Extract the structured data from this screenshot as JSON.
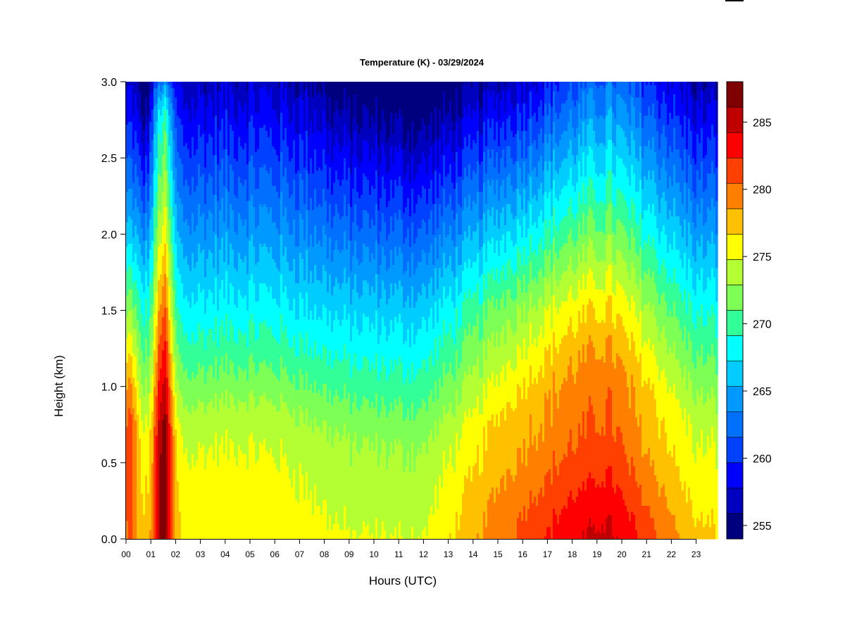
{
  "chart_data": {
    "type": "heatmap",
    "title": "Temperature (K) - 03/29/2024",
    "xlabel": "Hours (UTC)",
    "ylabel": "Height (km)",
    "x_ticks": [
      "00",
      "01",
      "02",
      "03",
      "04",
      "05",
      "06",
      "07",
      "08",
      "09",
      "10",
      "11",
      "12",
      "13",
      "14",
      "15",
      "16",
      "17",
      "18",
      "19",
      "20",
      "21",
      "22",
      "23"
    ],
    "x_range": [
      0,
      24
    ],
    "y_ticks": [
      "0.0",
      "0.5",
      "1.0",
      "1.5",
      "2.0",
      "2.5",
      "3.0"
    ],
    "y_range": [
      0,
      3
    ],
    "colorbar": {
      "min": 254,
      "max": 288,
      "step": 2,
      "ticks": [
        "255",
        "260",
        "265",
        "270",
        "275",
        "280",
        "285"
      ],
      "colors": [
        "#00007f",
        "#0000bf",
        "#0000ff",
        "#0040ff",
        "#0070ff",
        "#0099ff",
        "#00ccff",
        "#00ffff",
        "#33ff99",
        "#7dff55",
        "#b3ff33",
        "#ffff00",
        "#ffc000",
        "#ff8000",
        "#ff4000",
        "#ff0000",
        "#c00000",
        "#7f0000"
      ]
    },
    "field": {
      "description_units": "K",
      "surface_temperature_by_hour": [
        {
          "hour": 0,
          "value": 278
        },
        {
          "hour": 3,
          "value": 277
        },
        {
          "hour": 6,
          "value": 277
        },
        {
          "hour": 9,
          "value": 276
        },
        {
          "hour": 12,
          "value": 276
        },
        {
          "hour": 15,
          "value": 281
        },
        {
          "hour": 18,
          "value": 284
        },
        {
          "hour": 19.5,
          "value": 285
        },
        {
          "hour": 21,
          "value": 282
        },
        {
          "hour": 23,
          "value": 278
        }
      ],
      "warm_plume": {
        "hour_center": 1.5,
        "max_value": 286,
        "top_km": 2.7
      }
    },
    "grid": false,
    "legend": "colorbar-right"
  }
}
